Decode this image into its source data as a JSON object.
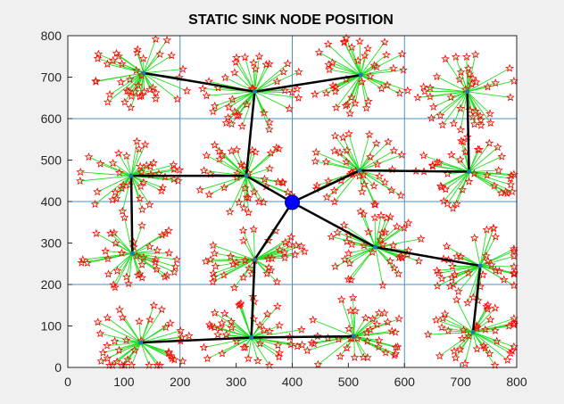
{
  "chart_data": {
    "type": "scatter",
    "title": "STATIC SINK NODE POSITION",
    "xlabel": "",
    "ylabel": "",
    "xlim": [
      0,
      800
    ],
    "ylim": [
      0,
      800
    ],
    "xticks": [
      0,
      100,
      200,
      300,
      400,
      500,
      600,
      700,
      800
    ],
    "yticks": [
      0,
      100,
      200,
      300,
      400,
      500,
      600,
      700,
      800
    ],
    "grid_lines": [
      0,
      200,
      400,
      600,
      800
    ],
    "grid": true,
    "colors": {
      "sensor_marker": "#ff0000",
      "sensor_link": "#22dd22",
      "route": "#000000",
      "cluster_head": "#1f77b4",
      "sink": "#0000ff",
      "grid": "#4a90c8"
    },
    "sink": {
      "x": 400,
      "y": 398
    },
    "cluster_heads": [
      {
        "x": 135,
        "y": 710
      },
      {
        "x": 333,
        "y": 665
      },
      {
        "x": 522,
        "y": 705
      },
      {
        "x": 712,
        "y": 665
      },
      {
        "x": 113,
        "y": 462
      },
      {
        "x": 318,
        "y": 462
      },
      {
        "x": 520,
        "y": 475
      },
      {
        "x": 715,
        "y": 472
      },
      {
        "x": 115,
        "y": 275
      },
      {
        "x": 333,
        "y": 260
      },
      {
        "x": 548,
        "y": 290
      },
      {
        "x": 735,
        "y": 245
      },
      {
        "x": 130,
        "y": 60
      },
      {
        "x": 327,
        "y": 72
      },
      {
        "x": 510,
        "y": 75
      },
      {
        "x": 722,
        "y": 85
      }
    ],
    "routes": [
      {
        "from": 0,
        "to": 1
      },
      {
        "from": 1,
        "to": 2
      },
      {
        "from": 1,
        "to": 5
      },
      {
        "from": 4,
        "to": 5
      },
      {
        "from": 4,
        "to": 8
      },
      {
        "from": 5,
        "to": "sink"
      },
      {
        "from": 6,
        "to": "sink"
      },
      {
        "from": 6,
        "to": 7
      },
      {
        "from": 7,
        "to": 3
      },
      {
        "from": 9,
        "to": "sink"
      },
      {
        "from": 9,
        "to": 13
      },
      {
        "from": 13,
        "to": 12
      },
      {
        "from": 13,
        "to": 14
      },
      {
        "from": 10,
        "to": "sink"
      },
      {
        "from": 10,
        "to": 11
      },
      {
        "from": 11,
        "to": 15
      }
    ],
    "sensors_per_cluster": 40,
    "cluster_spread": 95
  }
}
